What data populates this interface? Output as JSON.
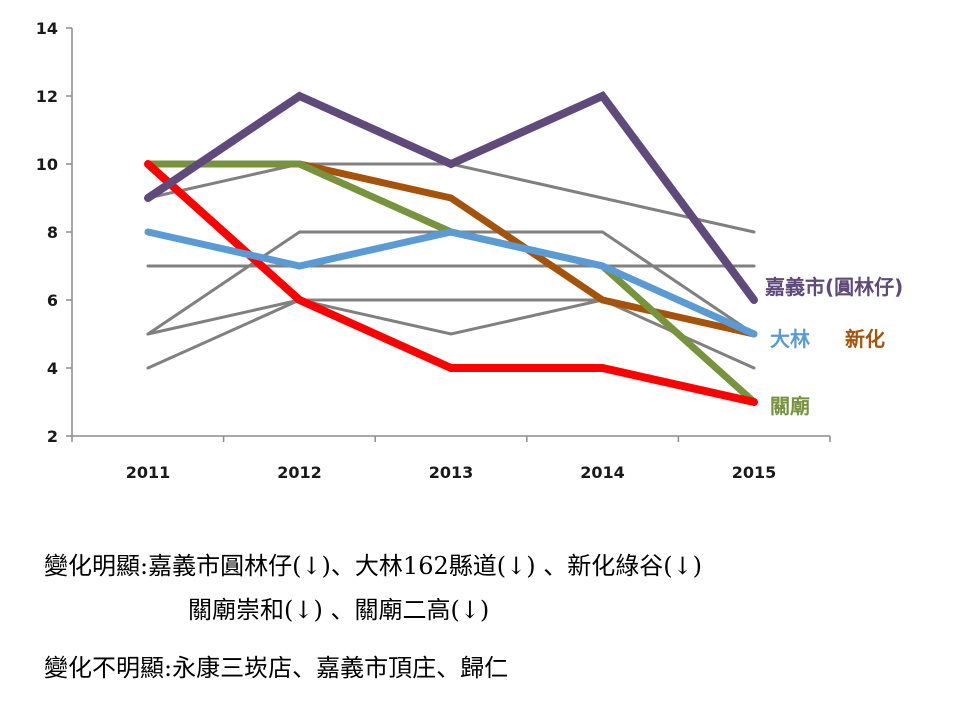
{
  "chart_data": {
    "type": "line",
    "x": [
      "2011",
      "2012",
      "2013",
      "2014",
      "2015"
    ],
    "ylim": [
      2,
      14
    ],
    "yticks": [
      2,
      4,
      6,
      8,
      10,
      12,
      14
    ],
    "grid": false,
    "series": [
      {
        "values": [
          4,
          6,
          5,
          6,
          5
        ],
        "color": "#808080",
        "width": 3
      },
      {
        "values": [
          5,
          6,
          6,
          6,
          4
        ],
        "color": "#808080",
        "width": 3
      },
      {
        "values": [
          5,
          8,
          8,
          8,
          5
        ],
        "color": "#808080",
        "width": 3
      },
      {
        "values": [
          7,
          7,
          7,
          7,
          7
        ],
        "color": "#808080",
        "width": 3
      },
      {
        "values": [
          9,
          10,
          10,
          9,
          8
        ],
        "color": "#808080",
        "width": 3
      },
      {
        "name": "新化",
        "values": [
          10,
          10,
          9,
          6,
          5
        ],
        "color": "#a5520a",
        "width": 7
      },
      {
        "name": "關廟",
        "values": [
          10,
          10,
          8,
          7,
          3
        ],
        "color": "#77933c",
        "width": 7
      },
      {
        "values": [
          10,
          6,
          4,
          4,
          3
        ],
        "color": "#ff0000",
        "width": 8
      },
      {
        "name": "大林",
        "values": [
          8,
          7,
          8,
          7,
          5
        ],
        "color": "#5a9bd5",
        "width": 7
      },
      {
        "name": "嘉義市(圓林仔)",
        "values": [
          9,
          12,
          10,
          12,
          6
        ],
        "color": "#604a7b",
        "width": 8
      }
    ]
  },
  "labels": {
    "jiayi": "嘉義市(圓林仔)",
    "dalin": "大林",
    "xinhua": "新化",
    "guanmiao": "關廟"
  },
  "notes": {
    "line1": "變化明顯:嘉義市圓林仔(↓)、大林162縣道(↓) 、新化綠谷(↓)",
    "line2": "關廟崇和(↓) 、關廟二高(↓)",
    "line3": "變化不明顯:永康三崁店、嘉義市頂庄、歸仁"
  }
}
